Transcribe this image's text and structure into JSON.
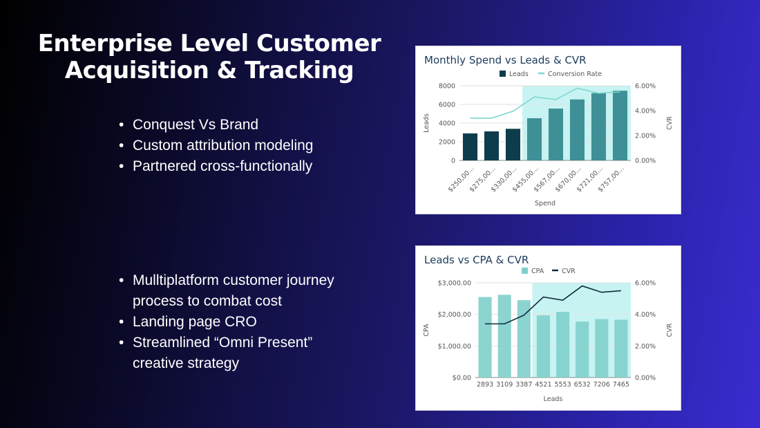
{
  "slide": {
    "title_line1": "Enterprise Level Customer",
    "title_line2": "Acquisition & Tracking",
    "bullets_top": [
      "Conquest Vs Brand",
      "Custom attribution modeling",
      "Partnered cross-functionally"
    ],
    "bullets_bottom": [
      "Mulltiplatform customer journey process to combat cost",
      "Landing page CRO",
      "Streamlined “Omni Present” creative strategy"
    ]
  },
  "chart_data": [
    {
      "type": "bar",
      "title": "Monthly Spend vs Leads & CVR",
      "categories": [
        "$250,00...",
        "$275,00...",
        "$330,00...",
        "$455,00...",
        "$567,00...",
        "$670,00...",
        "$721,00...",
        "$757,00..."
      ],
      "series": [
        {
          "name": "Leads",
          "type": "bar",
          "axis": "left",
          "values": [
            2893,
            3109,
            3387,
            4521,
            5553,
            6532,
            7206,
            7465
          ]
        },
        {
          "name": "Conversion Rate",
          "type": "line",
          "axis": "right",
          "values": [
            3.4,
            3.4,
            3.95,
            5.1,
            4.9,
            5.8,
            5.4,
            5.5
          ]
        }
      ],
      "xlabel": "Spend",
      "ylabel": "Leads",
      "y2label": "CVR",
      "ylim": [
        0,
        8000
      ],
      "yticks": [
        "0",
        "2000",
        "4000",
        "6000",
        "8000"
      ],
      "y2lim": [
        0,
        6
      ],
      "y2ticks": [
        "0.00%",
        "2.00%",
        "4.00%",
        "6.00%"
      ],
      "highlight_from_index": 3,
      "legend": "top",
      "colors": {
        "bar_dark": "#0d3d4c",
        "bar_light": "#3f9096",
        "line": "#7fd6cf",
        "highlight": "#c8f3f3"
      }
    },
    {
      "type": "bar",
      "title": "Leads vs CPA & CVR",
      "categories": [
        "2893",
        "3109",
        "3387",
        "4521",
        "5553",
        "6532",
        "7206",
        "7465"
      ],
      "series": [
        {
          "name": "CPA",
          "type": "bar",
          "axis": "left",
          "values": [
            2550,
            2620,
            2450,
            1970,
            2080,
            1770,
            1850,
            1830
          ]
        },
        {
          "name": "CVR",
          "type": "line",
          "axis": "right",
          "values": [
            3.4,
            3.4,
            3.95,
            5.1,
            4.9,
            5.8,
            5.4,
            5.5
          ]
        }
      ],
      "xlabel": "Leads",
      "ylabel": "CPA",
      "y2label": "CVR",
      "ylim": [
        0,
        3000
      ],
      "yticks": [
        "$0.00",
        "$1,000.00",
        "$2,000.00",
        "$3,000.00"
      ],
      "y2lim": [
        0,
        6
      ],
      "y2ticks": [
        "0.00%",
        "2.00%",
        "4.00%",
        "6.00%"
      ],
      "highlight_from_index": 3,
      "legend": "top",
      "colors": {
        "bar": "#7fcfcb",
        "line": "#0d2a3a",
        "highlight": "#c8f3f3"
      }
    }
  ]
}
